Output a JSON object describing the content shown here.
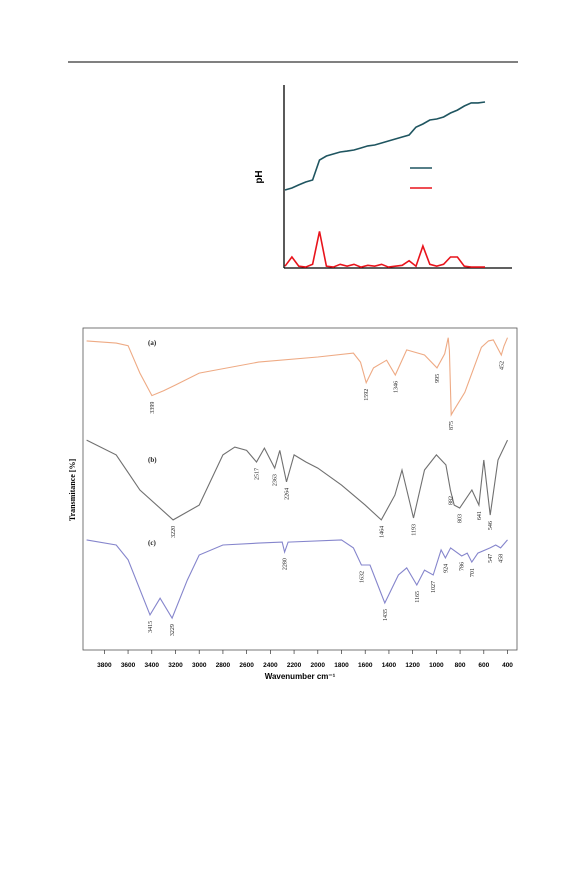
{
  "chart_data": [
    {
      "type": "line",
      "ylabel": "pH",
      "ylim": [
        0,
        100
      ],
      "series": [
        {
          "color": "#1f5560",
          "values": [
            42.6,
            43.7,
            45.4,
            47,
            48.1,
            59,
            61.2,
            62.3,
            63.4,
            63.9,
            64.5,
            65.6,
            66.7,
            67.2,
            68.3,
            69.4,
            70.5,
            71.6,
            72.7,
            77,
            78.7,
            80.9,
            81.4,
            82.5,
            84.7,
            86.3,
            88.5,
            90.2,
            90.2,
            90.7
          ]
        },
        {
          "color": "#e8141c",
          "values": [
            1,
            6,
            1,
            0.5,
            2,
            20,
            1,
            0.5,
            2,
            1,
            2,
            0.5,
            1.5,
            1,
            2,
            0.5,
            1,
            1.5,
            4,
            1,
            12,
            2,
            1,
            2,
            6,
            6,
            1,
            0.5,
            0.5,
            0.5
          ]
        }
      ]
    },
    {
      "type": "spectrum",
      "ylabel": "Transmitance [%]",
      "xlabel": "Wavenumber cm⁻¹",
      "xlim": [
        3980,
        320
      ],
      "ylim": [
        0,
        100
      ],
      "xticks": [
        3800,
        3600,
        3400,
        3200,
        3000,
        2800,
        2600,
        2400,
        2200,
        2000,
        1800,
        1600,
        1400,
        1200,
        1000,
        800,
        600,
        400
      ],
      "series": [
        {
          "name": "(a)",
          "color": "#eeaa84",
          "x": [
            3950,
            3700,
            3600,
            3500,
            3399,
            3300,
            3200,
            3000,
            2500,
            2000,
            1700,
            1640,
            1592,
            1530,
            1420,
            1346,
            1250,
            1100,
            995,
            930,
            900,
            890,
            875,
            860,
            760,
            620,
            560,
            520,
            452,
            430,
            400
          ],
          "values": [
            96,
            95.3,
            94.5,
            86,
            79,
            80.5,
            82.3,
            86,
            89.4,
            91,
            92.2,
            89.4,
            83,
            87.6,
            90,
            85.4,
            93.2,
            91.6,
            87.6,
            92,
            97,
            93,
            73,
            74,
            80,
            94,
            96,
            96.3,
            91.6,
            94.4,
            97
          ],
          "peaks": [
            3399,
            1592,
            1346,
            995,
            875,
            452
          ]
        },
        {
          "name": "(b)",
          "color": "#707070",
          "x": [
            3950,
            3700,
            3500,
            3220,
            3000,
            2800,
            2700,
            2600,
            2517,
            2450,
            2363,
            2320,
            2264,
            2200,
            2100,
            2000,
            1800,
            1600,
            1464,
            1350,
            1290,
            1193,
            1100,
            1000,
            920,
            882,
            850,
            803,
            700,
            641,
            600,
            546,
            480,
            400
          ],
          "values": [
            65.2,
            60.6,
            49.7,
            40.4,
            45,
            60.6,
            63,
            62,
            58.4,
            62.7,
            56.5,
            62,
            52.2,
            60.6,
            58.4,
            56.5,
            51.2,
            45,
            40.4,
            48.1,
            55.9,
            41,
            55.9,
            60.6,
            57.5,
            49.7,
            45,
            44.1,
            49.7,
            45,
            59,
            41.9,
            59,
            65.2
          ],
          "peaks": [
            3220,
            2517,
            2363,
            2264,
            1464,
            1193,
            882,
            803,
            641,
            546
          ]
        },
        {
          "name": "(c)",
          "color": "#8585cc",
          "x": [
            3950,
            3700,
            3600,
            3415,
            3330,
            3229,
            3100,
            3000,
            2800,
            2500,
            2300,
            2280,
            2250,
            1800,
            1700,
            1632,
            1560,
            1435,
            1320,
            1250,
            1165,
            1100,
            1027,
            960,
            924,
            880,
            786,
            740,
            701,
            650,
            547,
            500,
            458,
            400
          ],
          "values": [
            34.2,
            32.6,
            28,
            10.9,
            16.1,
            9.9,
            21.7,
            29.5,
            32.6,
            33.2,
            33.5,
            30.4,
            33.5,
            34.2,
            31.7,
            26.4,
            26.4,
            14.6,
            23.3,
            25.5,
            20.2,
            24.8,
            23.3,
            31.1,
            28.6,
            31.7,
            29.2,
            30.1,
            27.3,
            30.1,
            31.7,
            32.6,
            31.7,
            34.2
          ],
          "peaks": [
            3415,
            3229,
            2280,
            1632,
            1435,
            1165,
            1027,
            924,
            786,
            701,
            547,
            458
          ]
        }
      ]
    }
  ]
}
